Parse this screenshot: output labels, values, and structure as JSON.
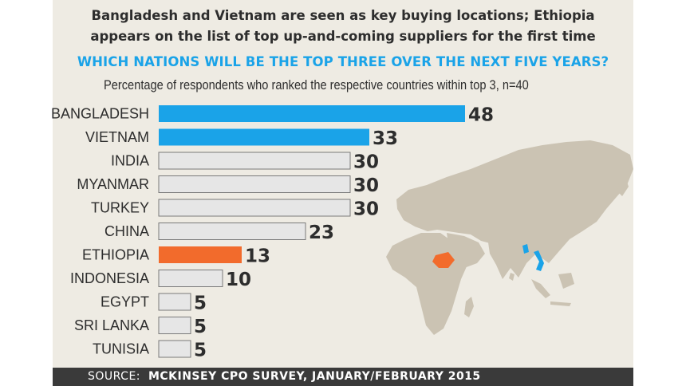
{
  "header": {
    "headline_line1": "Bangladesh and Vietnam are seen as key buying locations; Ethiopia",
    "headline_line2": "appears on the list of top up-and-coming suppliers for the first time",
    "question": "WHICH NATIONS WILL BE THE TOP THREE OVER THE NEXT FIVE YEARS?",
    "subtitle": "Percentage of respondents who ranked the respective countries within top 3, n=40"
  },
  "footer": {
    "source_label": "SOURCE:",
    "source_text": "MCKINSEY CPO SURVEY, JANUARY/FEBRUARY 2015"
  },
  "colors": {
    "background": "#eeebe3",
    "highlight_blue": "#1aa3e8",
    "highlight_orange": "#f26b2c",
    "default_bar": "#e6e6e6",
    "map_land": "#cbc3b3",
    "footer": "#3a3a3a"
  },
  "chart_data": {
    "type": "bar",
    "orientation": "horizontal",
    "categories": [
      "BANGLADESH",
      "VIETNAM",
      "INDIA",
      "MYANMAR",
      "TURKEY",
      "CHINA",
      "ETHIOPIA",
      "INDONESIA",
      "EGYPT",
      "SRI LANKA",
      "TUNISIA"
    ],
    "values": [
      48,
      33,
      30,
      30,
      30,
      23,
      13,
      10,
      5,
      5,
      5
    ],
    "highlight": [
      "blue",
      "blue",
      "none",
      "none",
      "none",
      "none",
      "orange",
      "none",
      "none",
      "none",
      "none"
    ],
    "title": "WHICH NATIONS WILL BE THE TOP THREE OVER THE NEXT FIVE YEARS?",
    "subtitle": "Percentage of respondents who ranked the respective countries within top 3, n=40",
    "xlabel": "",
    "ylabel": "",
    "xlim": [
      0,
      48
    ],
    "grid": false,
    "data_labels": true
  }
}
